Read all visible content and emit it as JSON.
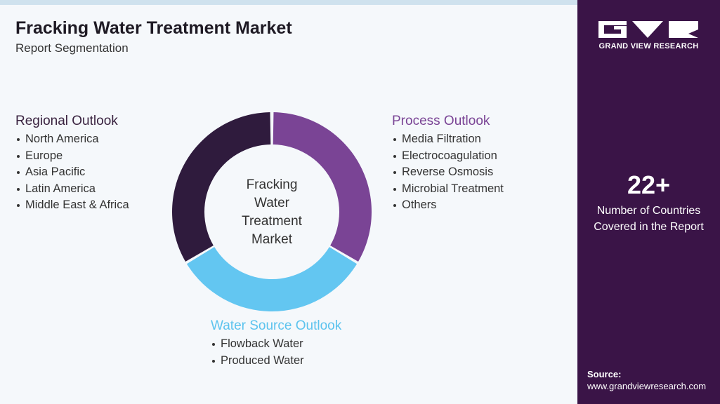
{
  "header": {
    "title": "Fracking Water Treatment Market",
    "subtitle": "Report Segmentation"
  },
  "center_label": [
    "Fracking",
    "Water",
    "Treatment",
    "Market"
  ],
  "segments": [
    {
      "title": "Regional Outlook",
      "items": [
        "North America",
        "Europe",
        "Asia Pacific",
        "Latin America",
        "Middle East & Africa"
      ]
    },
    {
      "title": "Process Outlook",
      "items": [
        "Media Filtration",
        "Electrocoagulation",
        "Reverse Osmosis",
        "Microbial Treatment",
        "Others"
      ]
    },
    {
      "title": "Water Source Outlook",
      "items": [
        "Flowback Water",
        "Produced Water"
      ]
    }
  ],
  "sidebar": {
    "brand": "GRAND VIEW RESEARCH",
    "stat": "22+",
    "stat_label": [
      "Number of Countries",
      "Covered in the Report"
    ],
    "source_label": "Source:",
    "source_url": "www.grandviewresearch.com"
  }
}
